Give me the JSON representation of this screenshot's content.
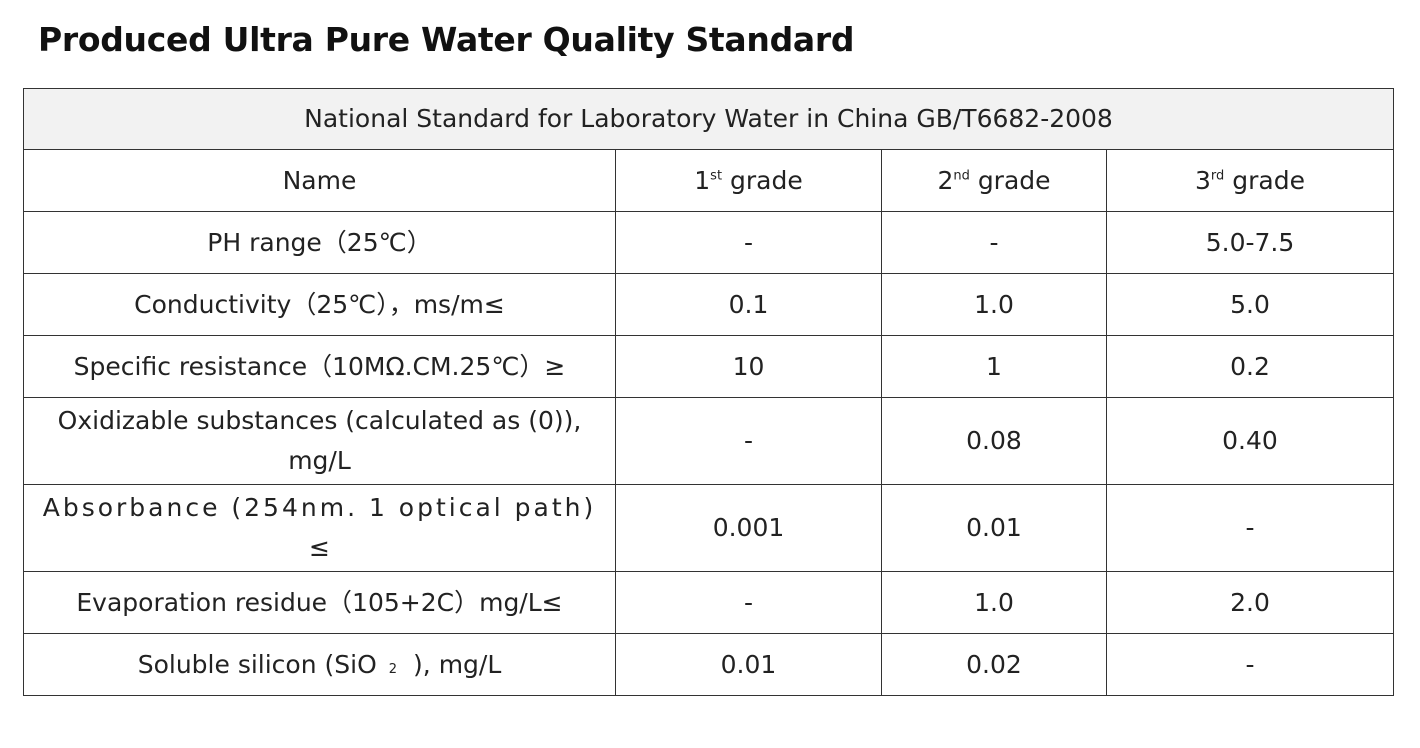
{
  "title": "Produced Ultra Pure Water Quality Standard",
  "table": {
    "banner": "National Standard for Laboratory Water in China GB/T6682-2008",
    "headers": {
      "name": "Name",
      "g1_num": "1",
      "g1_sup": "st",
      "g1_word": "grade",
      "g2_num": "2",
      "g2_sup": "nd",
      "g2_word": "grade",
      "g3_num": "3",
      "g3_sup": "rd",
      "g3_word": "grade"
    },
    "rows": [
      {
        "name": "PH range（25℃）",
        "g1": "-",
        "g2": "-",
        "g3": "5.0-7.5"
      },
      {
        "name": "Conductivity（25℃），ms/m≤",
        "g1": "0.1",
        "g2": "1.0",
        "g3": "5.0"
      },
      {
        "name": "Specific resistance（10MΩ.CM.25℃）≥",
        "g1": "10",
        "g2": "1",
        "g3": "0.2"
      },
      {
        "name_line1": "Oxidizable substances (calculated as (0)),",
        "name_line2": "mg/L",
        "g1": "-",
        "g2": "0.08",
        "g3": "0.40"
      },
      {
        "name_line1": "Absorbance (254nm. 1 optical path)",
        "name_line2": "≤",
        "g1": "0.001",
        "g2": "0.01",
        "g3": "-"
      },
      {
        "name": "Evaporation residue（105+2C）mg/L≤",
        "g1": "-",
        "g2": "1.0",
        "g3": "2.0"
      },
      {
        "name_pre": "Soluble silicon (SiO",
        "name_sub": "2",
        "name_post": "), mg/L",
        "g1": "0.01",
        "g2": "0.02",
        "g3": "-"
      }
    ]
  }
}
